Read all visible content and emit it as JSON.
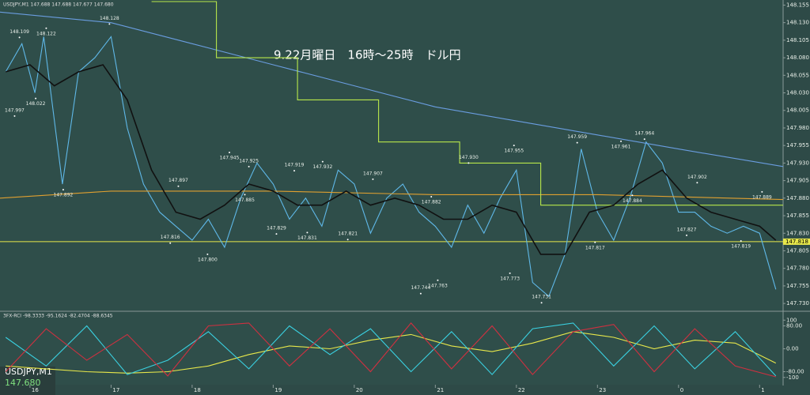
{
  "chart_data": [
    {
      "type": "line",
      "title": "9.22月曜日　16時～25時　ドル円",
      "header": "USDJPY,M1  147.688 147.688 147.677 147.680",
      "symbol": "USDJPY,M1",
      "last_price": "147.680",
      "xlim": [
        15.63,
        25.29
      ],
      "xticks": [
        16,
        17,
        18,
        19,
        20,
        21,
        22,
        23,
        {
          "value": 24,
          "label": "0"
        },
        {
          "value": 25,
          "label": "1"
        }
      ],
      "ylim": [
        147.72,
        148.16
      ],
      "yticks": [
        148.155,
        {
          "value": 148.13,
          "label": "148.130"
        },
        148.105,
        {
          "value": 148.08,
          "label": "148.080"
        },
        148.055,
        {
          "value": 148.03,
          "label": "148.030"
        },
        148.005,
        {
          "value": 147.98,
          "label": "147.980"
        },
        147.955,
        {
          "value": 147.93,
          "label": "147.930"
        },
        147.905,
        {
          "value": 147.88,
          "label": "147.880"
        },
        147.855,
        {
          "value": 147.83,
          "label": "147.830"
        },
        147.805,
        {
          "value": 147.78,
          "label": "147.780"
        },
        147.755,
        {
          "value": 147.73,
          "label": "147.730"
        }
      ],
      "level": {
        "value": 147.818,
        "label": "147.818",
        "color": "#e8e84a"
      },
      "series": [
        {
          "color": "#5fb8e8",
          "x": [
            15.7,
            15.9,
            16.06,
            16.17,
            16.4,
            16.6,
            16.8,
            17.0,
            17.2,
            17.4,
            17.6,
            17.8,
            18.0,
            18.2,
            18.4,
            18.6,
            18.8,
            19.0,
            19.2,
            19.4,
            19.6,
            19.8,
            20.0,
            20.2,
            20.4,
            20.6,
            20.8,
            21.0,
            21.2,
            21.4,
            21.6,
            21.8,
            22.0,
            22.2,
            22.4,
            22.6,
            22.8,
            23.0,
            23.2,
            23.4,
            23.6,
            23.8,
            24.0,
            24.2,
            24.4,
            24.6,
            24.8,
            25.0,
            25.2
          ],
          "values": [
            148.06,
            148.1,
            148.03,
            148.11,
            147.9,
            148.06,
            148.08,
            148.11,
            147.98,
            147.9,
            147.86,
            147.84,
            147.82,
            147.85,
            147.81,
            147.88,
            147.93,
            147.9,
            147.85,
            147.88,
            147.84,
            147.92,
            147.9,
            147.83,
            147.88,
            147.9,
            147.86,
            147.84,
            147.81,
            147.87,
            147.83,
            147.88,
            147.92,
            147.76,
            147.74,
            147.8,
            147.95,
            147.86,
            147.82,
            147.88,
            147.96,
            147.93,
            147.86,
            147.86,
            147.84,
            147.83,
            147.84,
            147.83,
            147.75
          ]
        },
        {
          "color": "#6a9de0",
          "x": [
            15.63,
            17,
            18,
            19,
            20,
            21,
            22,
            23,
            24,
            25.29
          ],
          "values": [
            148.145,
            148.13,
            148.1,
            148.07,
            148.04,
            148.01,
            147.99,
            147.97,
            147.95,
            147.925
          ]
        },
        {
          "color": "#e0a030",
          "x": [
            15.63,
            17,
            19,
            21,
            23,
            25.29
          ],
          "values": [
            147.88,
            147.89,
            147.89,
            147.885,
            147.885,
            147.878
          ]
        },
        {
          "color": "#b8e84a",
          "x": [
            17.5,
            18.3,
            18.3,
            19.3,
            19.3,
            20.3,
            20.3,
            21.3,
            21.3,
            22.3,
            22.3,
            25.29
          ],
          "values": [
            148.16,
            148.16,
            148.08,
            148.08,
            148.02,
            148.02,
            147.96,
            147.96,
            147.93,
            147.93,
            147.87,
            147.87
          ]
        },
        {
          "color": "#111111",
          "x": [
            15.7,
            16.0,
            16.3,
            16.6,
            16.9,
            17.2,
            17.5,
            17.8,
            18.1,
            18.4,
            18.7,
            19.0,
            19.3,
            19.6,
            19.9,
            20.2,
            20.5,
            20.8,
            21.1,
            21.4,
            21.7,
            22.0,
            22.3,
            22.6,
            22.9,
            23.2,
            23.5,
            23.8,
            24.1,
            24.4,
            24.7,
            25.0,
            25.2
          ],
          "values": [
            148.06,
            148.07,
            148.04,
            148.06,
            148.07,
            148.02,
            147.92,
            147.86,
            147.85,
            147.87,
            147.9,
            147.89,
            147.87,
            147.87,
            147.89,
            147.87,
            147.88,
            147.87,
            147.85,
            147.85,
            147.87,
            147.86,
            147.8,
            147.8,
            147.86,
            147.87,
            147.9,
            147.92,
            147.88,
            147.86,
            147.85,
            147.84,
            147.82
          ]
        }
      ],
      "annotations": [
        {
          "x": 15.87,
          "value": 148.109,
          "label": "148.109"
        },
        {
          "x": 16.2,
          "value": 148.122,
          "label": "148.122"
        },
        {
          "x": 16.98,
          "value": 148.128,
          "label": "148.128"
        },
        {
          "x": 16.07,
          "value": 148.022,
          "label": "148.022"
        },
        {
          "x": 15.81,
          "value": 147.997,
          "label": "147.997"
        },
        {
          "x": 16.41,
          "value": 147.892,
          "label": "147.892"
        },
        {
          "x": 17.83,
          "value": 147.897,
          "label": "147.897"
        },
        {
          "x": 18.46,
          "value": 147.945,
          "label": "147.945"
        },
        {
          "x": 18.7,
          "value": 147.925,
          "label": "147.925"
        },
        {
          "x": 18.65,
          "value": 147.885,
          "label": "147.885"
        },
        {
          "x": 19.26,
          "value": 147.919,
          "label": "147.919"
        },
        {
          "x": 19.61,
          "value": 147.932,
          "label": "147.932"
        },
        {
          "x": 20.23,
          "value": 147.907,
          "label": "147.907"
        },
        {
          "x": 20.95,
          "value": 147.882,
          "label": "147.882"
        },
        {
          "x": 21.41,
          "value": 147.93,
          "label": "147.930"
        },
        {
          "x": 21.97,
          "value": 147.955,
          "label": "147.955"
        },
        {
          "x": 22.75,
          "value": 147.959,
          "label": "147.959"
        },
        {
          "x": 23.29,
          "value": 147.961,
          "label": "147.961"
        },
        {
          "x": 23.58,
          "value": 147.964,
          "label": "147.964"
        },
        {
          "x": 23.43,
          "value": 147.884,
          "label": "147.884"
        },
        {
          "x": 24.23,
          "value": 147.902,
          "label": "147.902"
        },
        {
          "x": 25.03,
          "value": 147.889,
          "label": "147.889"
        },
        {
          "x": 17.73,
          "value": 147.816,
          "label": "147.816"
        },
        {
          "x": 18.19,
          "value": 147.8,
          "label": "147.800"
        },
        {
          "x": 19.04,
          "value": 147.829,
          "label": "147.829"
        },
        {
          "x": 19.42,
          "value": 147.831,
          "label": "147.831"
        },
        {
          "x": 19.92,
          "value": 147.821,
          "label": "147.821"
        },
        {
          "x": 21.03,
          "value": 147.763,
          "label": "147.763"
        },
        {
          "x": 20.82,
          "value": 147.744,
          "label": "147.744"
        },
        {
          "x": 21.92,
          "value": 147.773,
          "label": "147.773"
        },
        {
          "x": 22.31,
          "value": 147.731,
          "label": "147.731"
        },
        {
          "x": 22.97,
          "value": 147.817,
          "label": "147.817"
        },
        {
          "x": 24.1,
          "value": 147.827,
          "label": "147.827"
        },
        {
          "x": 24.77,
          "value": 147.819,
          "label": "147.819"
        }
      ]
    },
    {
      "type": "line",
      "title": "3FX-RCI -98.3333 -95.1624 -82.4704 -88.6345",
      "xlim": [
        15.63,
        25.29
      ],
      "ylim": [
        -120,
        120
      ],
      "yticks": [
        100,
        {
          "value": 80,
          "label": "80.00"
        },
        {
          "value": 0,
          "label": "0.00"
        },
        {
          "value": -80,
          "label": "-80.00"
        },
        -100
      ],
      "series": [
        {
          "color": "#e8e84a",
          "x": [
            15.7,
            16.2,
            16.7,
            17.2,
            17.7,
            18.2,
            18.7,
            19.2,
            19.7,
            20.2,
            20.7,
            21.2,
            21.7,
            22.2,
            22.7,
            23.2,
            23.7,
            24.2,
            24.7,
            25.2
          ],
          "values": [
            -60,
            -70,
            -80,
            -85,
            -80,
            -60,
            -20,
            10,
            0,
            30,
            50,
            10,
            -10,
            20,
            60,
            40,
            0,
            30,
            20,
            -50
          ]
        },
        {
          "color": "#3ad0e0",
          "x": [
            15.7,
            16.2,
            16.7,
            17.2,
            17.7,
            18.2,
            18.7,
            19.2,
            19.7,
            20.2,
            20.7,
            21.2,
            21.7,
            22.2,
            22.7,
            23.2,
            23.7,
            24.2,
            24.7,
            25.2
          ],
          "values": [
            40,
            -60,
            80,
            -90,
            -40,
            60,
            -70,
            80,
            -20,
            70,
            -80,
            60,
            -90,
            70,
            90,
            -60,
            80,
            -70,
            60,
            -95
          ]
        },
        {
          "color": "#d03040",
          "x": [
            15.7,
            16.2,
            16.7,
            17.2,
            17.7,
            18.2,
            18.7,
            19.2,
            19.7,
            20.2,
            20.7,
            21.2,
            21.7,
            22.2,
            22.7,
            23.2,
            23.7,
            24.2,
            24.7,
            25.2
          ],
          "values": [
            -80,
            70,
            -40,
            50,
            -95,
            80,
            90,
            -60,
            70,
            -80,
            90,
            -70,
            80,
            -90,
            60,
            85,
            -80,
            70,
            -60,
            -98
          ]
        }
      ]
    }
  ]
}
